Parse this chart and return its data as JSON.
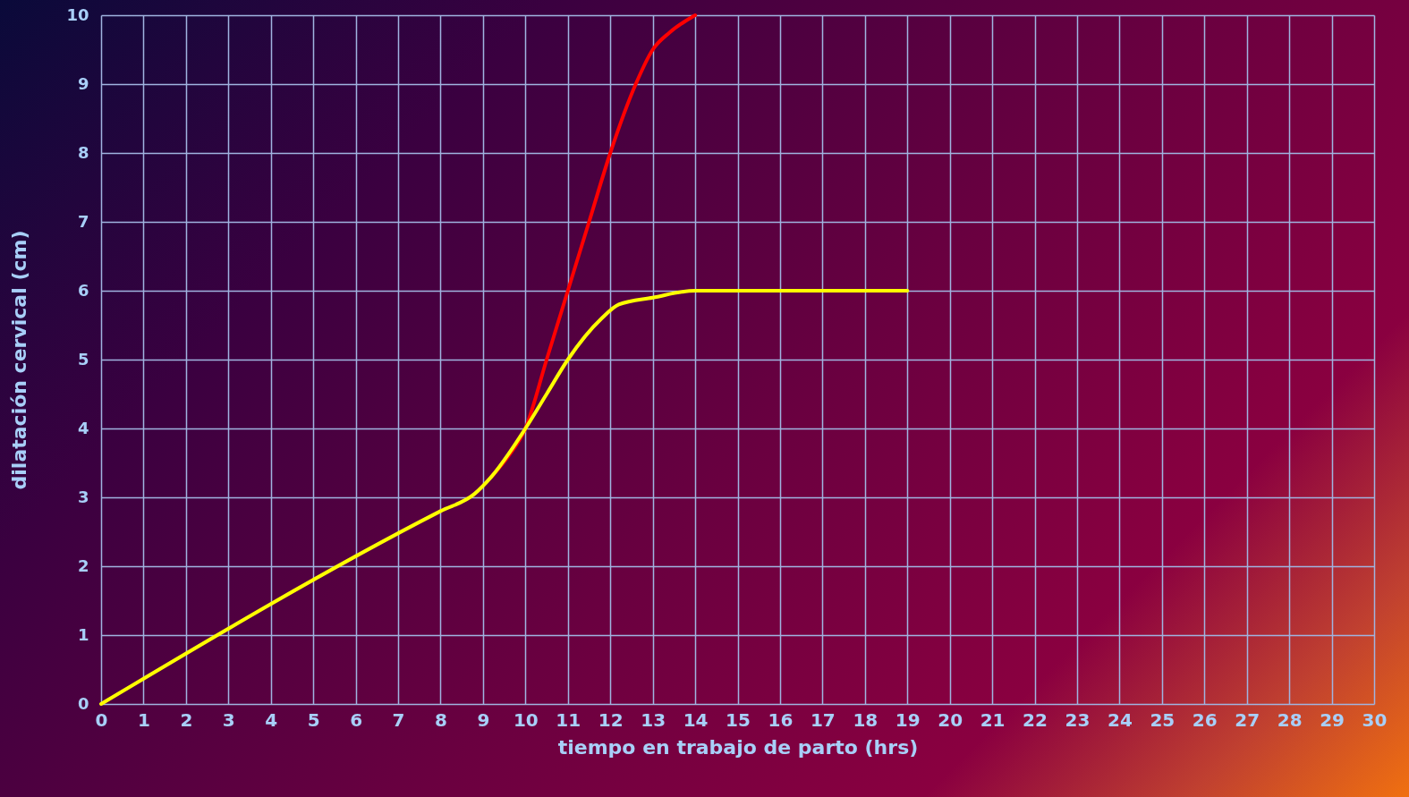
{
  "chart_data": {
    "type": "line",
    "xlabel": "tiempo en trabajo de parto (hrs)",
    "ylabel": "dilatación cervical (cm)",
    "xlim": [
      0,
      30
    ],
    "xticks": [
      0,
      1,
      2,
      3,
      4,
      5,
      6,
      7,
      8,
      9,
      10,
      11,
      12,
      13,
      14,
      15,
      16,
      17,
      18,
      19,
      20,
      21,
      22,
      23,
      24,
      25,
      26,
      27,
      28,
      29,
      30
    ],
    "ylim": [
      0,
      10
    ],
    "yticks": [
      0,
      1,
      2,
      3,
      4,
      5,
      6,
      7,
      8,
      9,
      10
    ],
    "grid": true,
    "legend": false,
    "marker": "none",
    "line_style": "solid",
    "series": [
      {
        "color": "#ff0000",
        "x": [
          9.2,
          9.6,
          10,
          10.5,
          11,
          11.5,
          12,
          12.6,
          13,
          13.4,
          14
        ],
        "values": [
          3.3,
          3.6,
          4,
          5,
          6,
          7,
          8,
          9,
          9.5,
          9.75,
          10
        ]
      },
      {
        "color": "#ffff00",
        "x": [
          0,
          8,
          8.8,
          9.2,
          10,
          10.5,
          11,
          11.8,
          12.2,
          13,
          14,
          19
        ],
        "values": [
          0,
          2.8,
          3.05,
          3.3,
          4,
          4.5,
          5,
          5.6,
          5.8,
          5.9,
          6,
          6
        ]
      }
    ]
  }
}
